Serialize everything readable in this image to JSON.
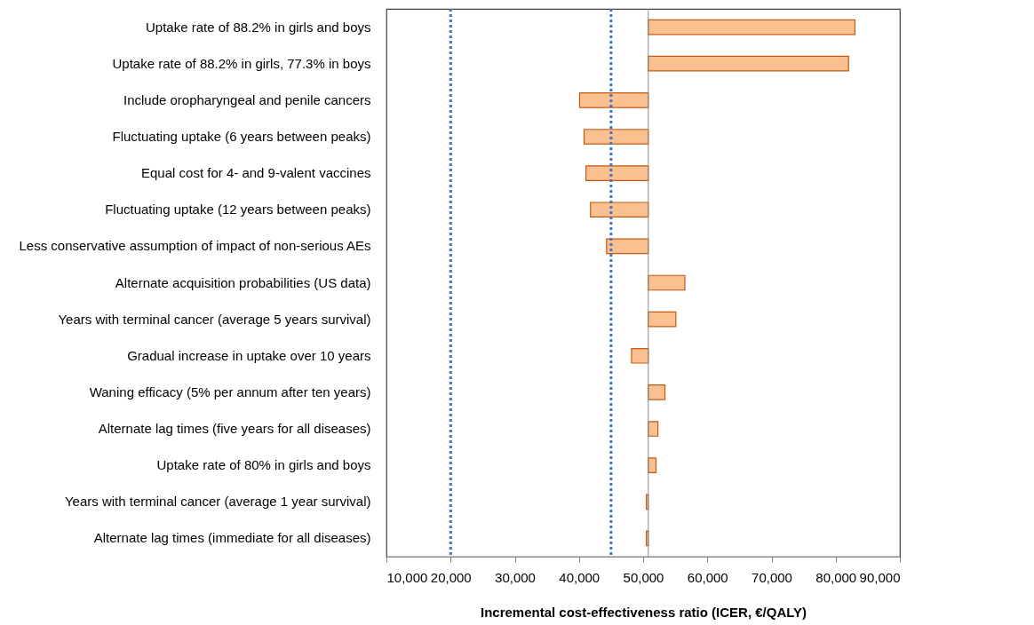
{
  "chart_data": {
    "type": "bar",
    "orientation": "horizontal",
    "xlabel": "Incremental cost-effectiveness ratio (ICER, €/QALY)",
    "categories": [
      "Uptake rate of 88.2% in girls and boys",
      "Uptake rate of 88.2% in girls, 77.3% in boys",
      "Include oropharyngeal and penile cancers",
      "Fluctuating uptake (6 years between peaks)",
      "Equal cost for 4- and 9-valent vaccines",
      "Fluctuating uptake (12 years between peaks)",
      "Less conservative assumption of impact of non-serious AEs",
      "Alternate acquisition probabilities (US data)",
      "Years with terminal cancer (average 5 years survival)",
      "Gradual increase in uptake over 10 years",
      "Waning efficacy (5% per annum after ten years)",
      "Alternate lag times (five years for all diseases)",
      "Uptake rate of 80% in girls and boys",
      "Years with terminal cancer (average 1 year survival)",
      "Alternate lag times (immediate for all diseases)"
    ],
    "base": [
      50800,
      50800,
      50800,
      50800,
      50800,
      50800,
      50800,
      50800,
      50800,
      50800,
      50800,
      50800,
      50800,
      50800,
      50800
    ],
    "values": [
      32200,
      31200,
      -10700,
      -10000,
      -9700,
      -9000,
      -6500,
      5700,
      4300,
      -2600,
      2600,
      1500,
      1200,
      -300,
      -300
    ],
    "color": "#fac090",
    "xlim": [
      10000,
      90000
    ],
    "xticks": [
      {
        "value": 10000,
        "label": "10,000"
      },
      {
        "value": 20000,
        "label": "20,000"
      },
      {
        "value": 30000,
        "label": "30,000"
      },
      {
        "value": 40000,
        "label": "40,000"
      },
      {
        "value": 50000,
        "label": "50,000"
      },
      {
        "value": 60000,
        "label": "60,000"
      },
      {
        "value": 70000,
        "label": "70,000"
      },
      {
        "value": 80000,
        "label": "80,000"
      },
      {
        "value": 90000,
        "label": "90,000"
      }
    ],
    "ref_lines": [
      {
        "axis": "x",
        "value": 20000,
        "color": "#4472c4",
        "line_style": "dotted"
      },
      {
        "axis": "x",
        "value": 45000,
        "color": "#4472c4",
        "line_style": "dotted"
      },
      {
        "axis": "x",
        "value": 50800,
        "color": "#8c8c8c",
        "line_style": "solid"
      }
    ]
  }
}
